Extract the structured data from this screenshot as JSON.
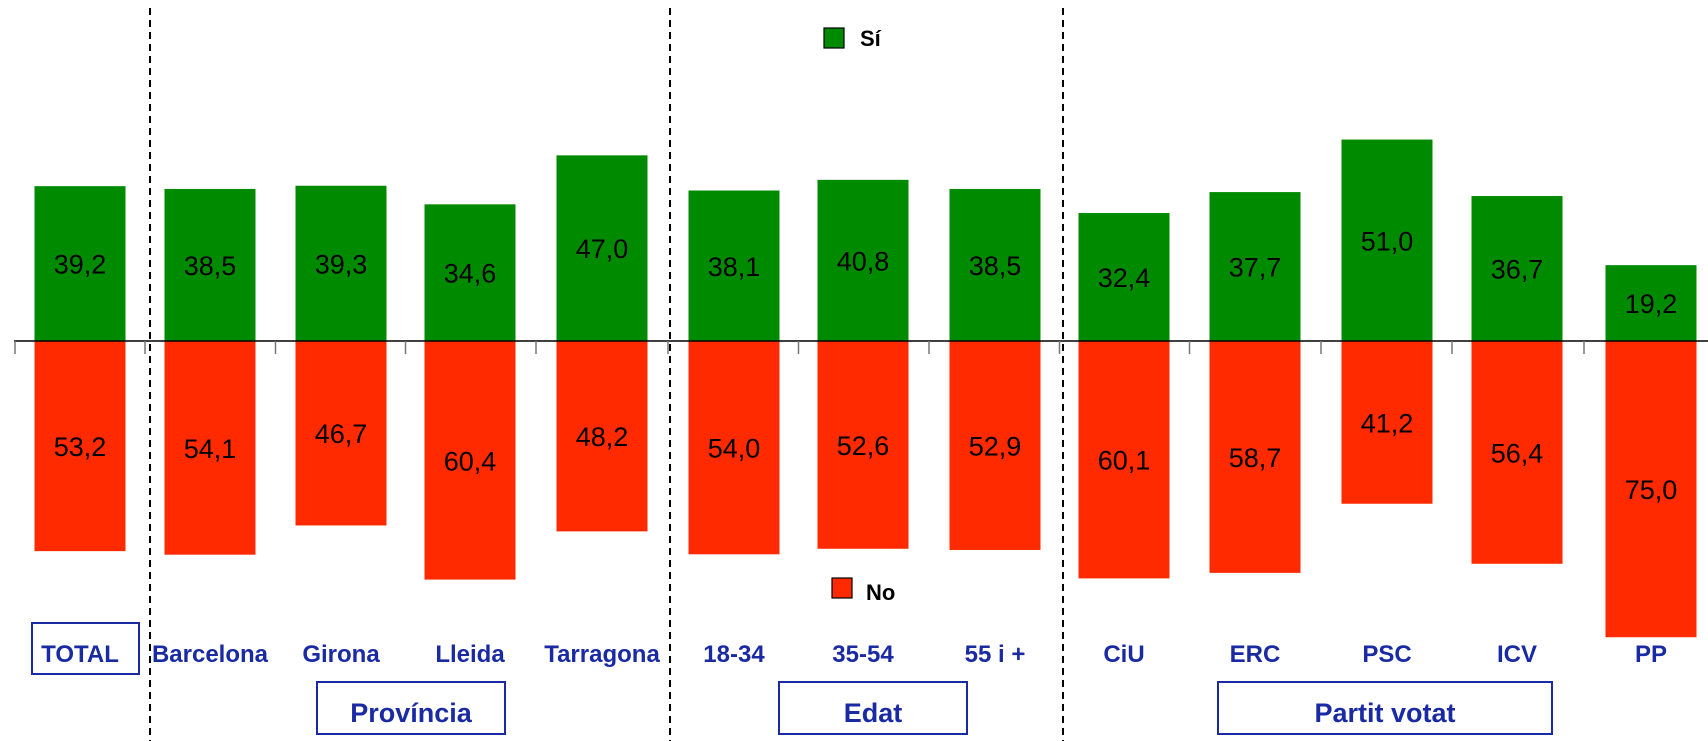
{
  "chart_data": {
    "type": "bar",
    "colors": {
      "si": "#008a00",
      "no": "#ff2a00",
      "labels": "#1a2aa3"
    },
    "categories": [
      "TOTAL",
      "Barcelona",
      "Girona",
      "Lleida",
      "Tarragona",
      "18-34",
      "35-54",
      "55 i +",
      "CiU",
      "ERC",
      "PSC",
      "ICV",
      "PP"
    ],
    "series": [
      {
        "name": "Sí",
        "values": [
          39.2,
          38.5,
          39.3,
          34.6,
          47.0,
          38.1,
          40.8,
          38.5,
          32.4,
          37.7,
          51.0,
          36.7,
          19.2
        ],
        "labels": [
          "39,2",
          "38,5",
          "39,3",
          "34,6",
          "47,0",
          "38,1",
          "40,8",
          "38,5",
          "32,4",
          "37,7",
          "51,0",
          "36,7",
          "19,2"
        ]
      },
      {
        "name": "No",
        "values": [
          53.2,
          54.1,
          46.7,
          60.4,
          48.2,
          54.0,
          52.6,
          52.9,
          60.1,
          58.7,
          41.2,
          56.4,
          75.0
        ],
        "labels": [
          "53,2",
          "54,1",
          "46,7",
          "60,4",
          "48,2",
          "54,0",
          "52,6",
          "52,9",
          "60,1",
          "58,7",
          "41,2",
          "56,4",
          "75,0"
        ]
      }
    ],
    "groups": [
      {
        "label": "Província",
        "categories": [
          "Barcelona",
          "Girona",
          "Lleida",
          "Tarragona"
        ]
      },
      {
        "label": "Edat",
        "categories": [
          "18-34",
          "35-54",
          "55 i +"
        ]
      },
      {
        "label": "Partit votat",
        "categories": [
          "CiU",
          "ERC",
          "PSC",
          "ICV",
          "PP"
        ]
      }
    ],
    "legend": {
      "position": "center"
    }
  }
}
